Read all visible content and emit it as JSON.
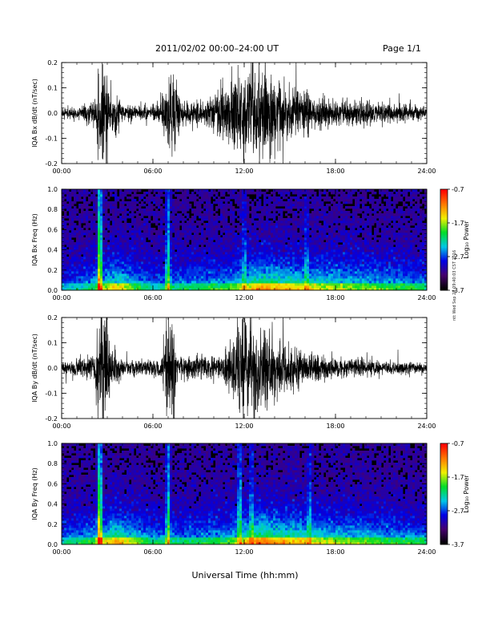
{
  "header": {
    "title": "2011/02/02  00:00–24:00 UT",
    "page": "Page 1/1"
  },
  "xlabel": "Universal Time (hh:mm)",
  "side_stamp": "ntt Wed Sep 28 09:40:03 CST 2016",
  "chart_data": [
    {
      "type": "line",
      "ylabel": "IQA Bx dB/dt (nT/sec)",
      "xlim": [
        0,
        24
      ],
      "ylim": [
        -0.2,
        0.2
      ],
      "yticks": [
        "-0.2",
        "-0.1",
        "0.0",
        "0.1",
        "0.2"
      ],
      "xticks": [
        "00:00",
        "06:00",
        "12:00",
        "18:00",
        "24:00"
      ],
      "envelope": [
        {
          "x": 0.0,
          "a": 0.025
        },
        {
          "x": 1.5,
          "a": 0.03
        },
        {
          "x": 2.3,
          "a": 0.06
        },
        {
          "x": 2.4,
          "a": 0.25
        },
        {
          "x": 3.0,
          "a": 0.25
        },
        {
          "x": 3.1,
          "a": 0.06
        },
        {
          "x": 3.5,
          "a": 0.12
        },
        {
          "x": 4.0,
          "a": 0.03
        },
        {
          "x": 6.2,
          "a": 0.03
        },
        {
          "x": 6.8,
          "a": 0.1
        },
        {
          "x": 7.0,
          "a": 0.2
        },
        {
          "x": 7.4,
          "a": 0.2
        },
        {
          "x": 7.8,
          "a": 0.05
        },
        {
          "x": 9.8,
          "a": 0.06
        },
        {
          "x": 10.5,
          "a": 0.12
        },
        {
          "x": 11.2,
          "a": 0.14
        },
        {
          "x": 11.8,
          "a": 0.2
        },
        {
          "x": 12.6,
          "a": 0.18
        },
        {
          "x": 13.8,
          "a": 0.17
        },
        {
          "x": 15.0,
          "a": 0.1
        },
        {
          "x": 16.5,
          "a": 0.08
        },
        {
          "x": 18.0,
          "a": 0.05
        },
        {
          "x": 20.0,
          "a": 0.05
        },
        {
          "x": 24.0,
          "a": 0.03
        }
      ]
    },
    {
      "type": "heatmap",
      "ylabel": "IQA Bx Freq (Hz)",
      "xlim": [
        0,
        24
      ],
      "ylim": [
        0,
        1.0
      ],
      "yticks": [
        "0.0",
        "0.2",
        "0.4",
        "0.6",
        "0.8",
        "1.0"
      ],
      "xticks": [
        "00:00",
        "06:00",
        "12:00",
        "18:00",
        "24:00"
      ],
      "colorbar": {
        "label": "Log₁₀ Power",
        "ticks": [
          "-0.7",
          "-1.7",
          "-2.7",
          "-3.7"
        ],
        "range": [
          -3.7,
          -0.7
        ]
      },
      "bursts": [
        {
          "x": 2.5,
          "s": 1.0
        },
        {
          "x": 7.0,
          "s": 0.6
        },
        {
          "x": 12.0,
          "s": 0.3
        },
        {
          "x": 16.1,
          "s": 0.25
        }
      ],
      "activity": [
        {
          "x": 0.0,
          "a": 0.2
        },
        {
          "x": 2.0,
          "a": 0.3
        },
        {
          "x": 3.5,
          "a": 0.5
        },
        {
          "x": 6.0,
          "a": 0.25
        },
        {
          "x": 8.0,
          "a": 0.3
        },
        {
          "x": 11.0,
          "a": 0.35
        },
        {
          "x": 13.0,
          "a": 0.55
        },
        {
          "x": 17.0,
          "a": 0.45
        },
        {
          "x": 24.0,
          "a": 0.3
        }
      ]
    },
    {
      "type": "line",
      "ylabel": "IQA By dB/dt (nT/sec)",
      "xlim": [
        0,
        24
      ],
      "ylim": [
        -0.2,
        0.2
      ],
      "yticks": [
        "-0.2",
        "-0.1",
        "0.0",
        "0.1",
        "0.2"
      ],
      "xticks": [
        "00:00",
        "06:00",
        "12:00",
        "18:00",
        "24:00"
      ],
      "envelope": [
        {
          "x": 0.0,
          "a": 0.02
        },
        {
          "x": 2.2,
          "a": 0.05
        },
        {
          "x": 2.35,
          "a": 0.25
        },
        {
          "x": 3.0,
          "a": 0.25
        },
        {
          "x": 3.2,
          "a": 0.08
        },
        {
          "x": 3.6,
          "a": 0.07
        },
        {
          "x": 4.0,
          "a": 0.03
        },
        {
          "x": 6.6,
          "a": 0.04
        },
        {
          "x": 6.9,
          "a": 0.22
        },
        {
          "x": 7.3,
          "a": 0.22
        },
        {
          "x": 7.7,
          "a": 0.05
        },
        {
          "x": 10.5,
          "a": 0.05
        },
        {
          "x": 11.4,
          "a": 0.14
        },
        {
          "x": 11.7,
          "a": 0.22
        },
        {
          "x": 12.2,
          "a": 0.2
        },
        {
          "x": 13.5,
          "a": 0.16
        },
        {
          "x": 14.5,
          "a": 0.1
        },
        {
          "x": 16.0,
          "a": 0.07
        },
        {
          "x": 19.0,
          "a": 0.04
        },
        {
          "x": 24.0,
          "a": 0.02
        }
      ]
    },
    {
      "type": "heatmap",
      "ylabel": "IQA By Freq (Hz)",
      "xlim": [
        0,
        24
      ],
      "ylim": [
        0,
        1.0
      ],
      "yticks": [
        "0.0",
        "0.2",
        "0.4",
        "0.6",
        "0.8",
        "1.0"
      ],
      "xticks": [
        "00:00",
        "06:00",
        "12:00",
        "18:00",
        "24:00"
      ],
      "colorbar": {
        "label": "Log₁₀ Power",
        "ticks": [
          "-0.7",
          "-1.7",
          "-2.7",
          "-3.7"
        ],
        "range": [
          -3.7,
          -0.7
        ]
      },
      "bursts": [
        {
          "x": 2.5,
          "s": 1.0
        },
        {
          "x": 7.0,
          "s": 0.6
        },
        {
          "x": 11.7,
          "s": 0.5
        },
        {
          "x": 12.5,
          "s": 0.35
        },
        {
          "x": 16.3,
          "s": 0.3
        }
      ],
      "activity": [
        {
          "x": 0.0,
          "a": 0.25
        },
        {
          "x": 2.0,
          "a": 0.35
        },
        {
          "x": 3.5,
          "a": 0.55
        },
        {
          "x": 6.0,
          "a": 0.3
        },
        {
          "x": 8.0,
          "a": 0.3
        },
        {
          "x": 11.0,
          "a": 0.35
        },
        {
          "x": 13.0,
          "a": 0.6
        },
        {
          "x": 17.0,
          "a": 0.45
        },
        {
          "x": 24.0,
          "a": 0.3
        }
      ]
    }
  ]
}
